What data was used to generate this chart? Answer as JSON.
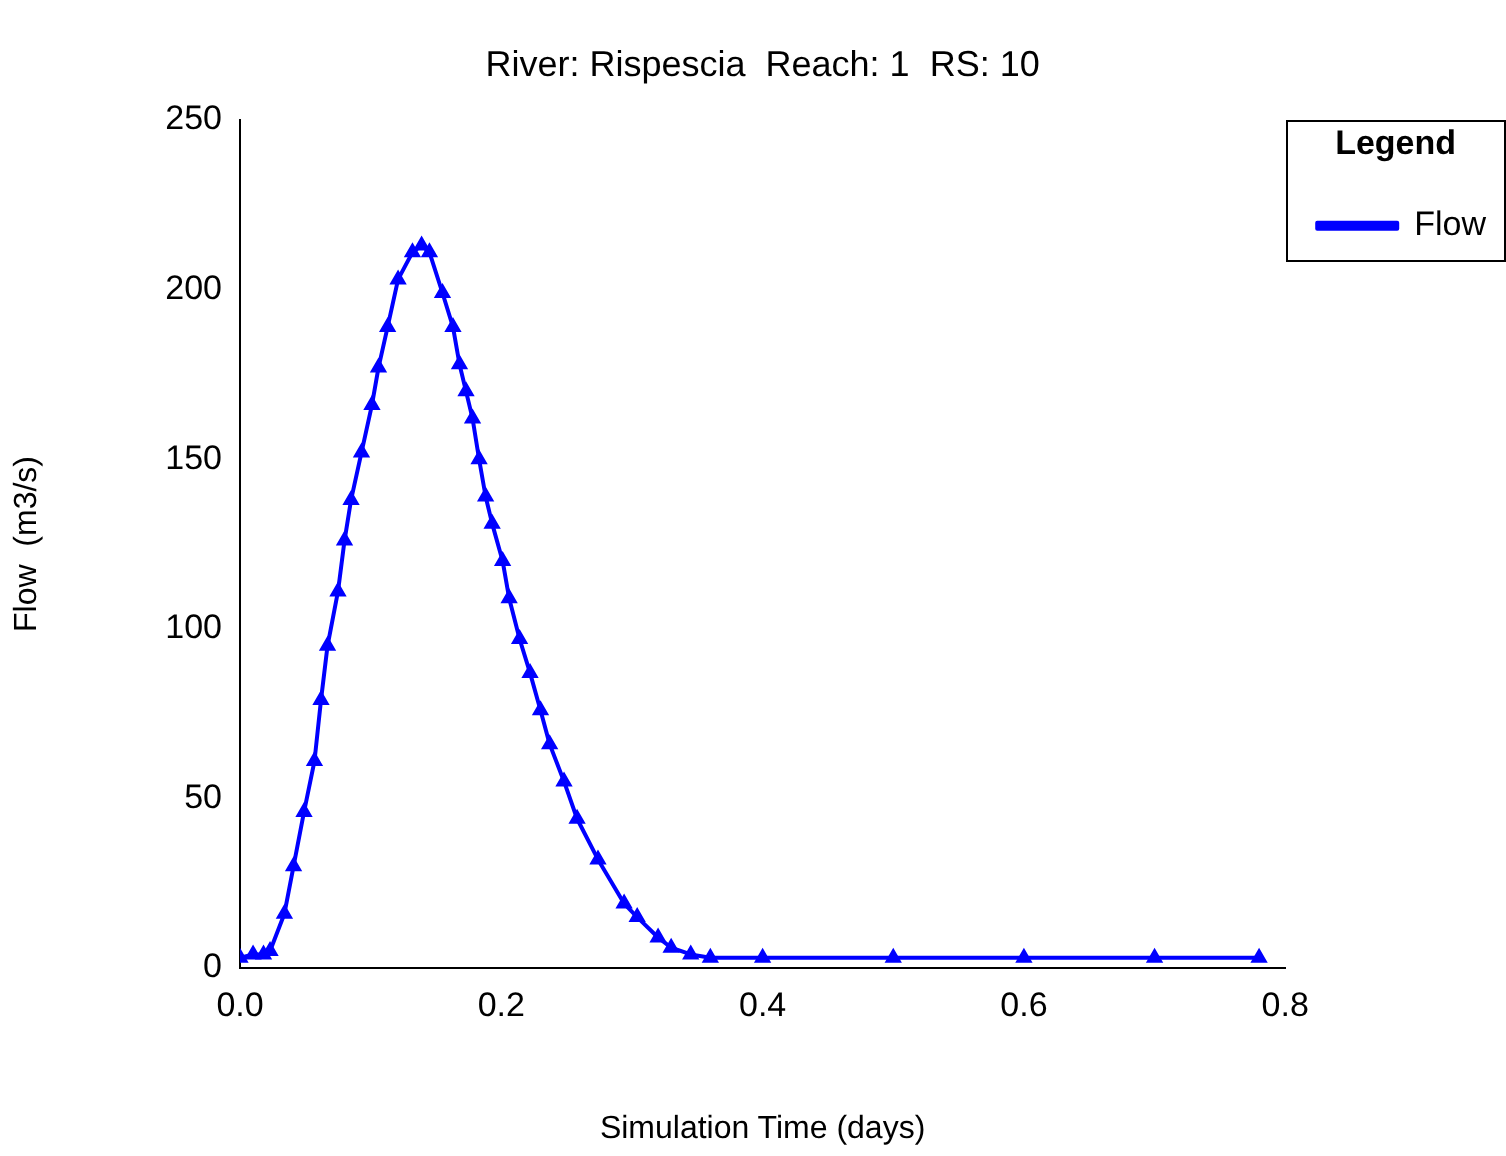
{
  "chart_data": {
    "type": "line",
    "title": "River: Rispescia  Reach: 1  RS: 10",
    "xlabel": "Simulation Time (days)",
    "ylabel": "Flow  (m3/s)",
    "x": [
      0,
      0.01,
      0.018,
      0.023,
      0.034,
      0.041,
      0.049,
      0.057,
      0.062,
      0.067,
      0.075,
      0.08,
      0.085,
      0.093,
      0.101,
      0.106,
      0.113,
      0.121,
      0.132,
      0.139,
      0.145,
      0.155,
      0.163,
      0.168,
      0.173,
      0.178,
      0.183,
      0.188,
      0.193,
      0.201,
      0.206,
      0.214,
      0.222,
      0.23,
      0.237,
      0.248,
      0.258,
      0.274,
      0.294,
      0.304,
      0.32,
      0.33,
      0.345,
      0.36,
      0.4,
      0.5,
      0.6,
      0.7,
      0.78
    ],
    "series": [
      {
        "name": "Flow",
        "color": "#0000ff",
        "values": [
          3,
          4,
          4,
          5,
          16,
          30,
          46,
          61,
          79,
          95,
          111,
          126,
          138,
          152,
          166,
          177,
          189,
          203,
          211,
          213,
          211,
          199,
          189,
          178,
          170,
          162,
          150,
          139,
          131,
          120,
          109,
          97,
          87,
          76,
          66,
          55,
          44,
          32,
          19,
          15,
          9,
          6,
          4,
          3,
          3,
          3,
          3,
          3,
          3
        ]
      }
    ],
    "xlim": [
      0,
      0.8
    ],
    "xticks": [
      {
        "value": 0,
        "label": "0.0"
      },
      {
        "value": 0.2,
        "label": "0.2"
      },
      {
        "value": 0.4,
        "label": "0.4"
      },
      {
        "value": 0.6,
        "label": "0.6"
      },
      {
        "value": 0.8,
        "label": "0.8"
      }
    ],
    "ylim": [
      0,
      250
    ],
    "yticks": [
      0,
      50,
      100,
      150,
      200,
      250
    ],
    "grid": false,
    "legend": "top right",
    "legend_title": "Legend",
    "marker": "triangle",
    "line_style": "solid"
  }
}
